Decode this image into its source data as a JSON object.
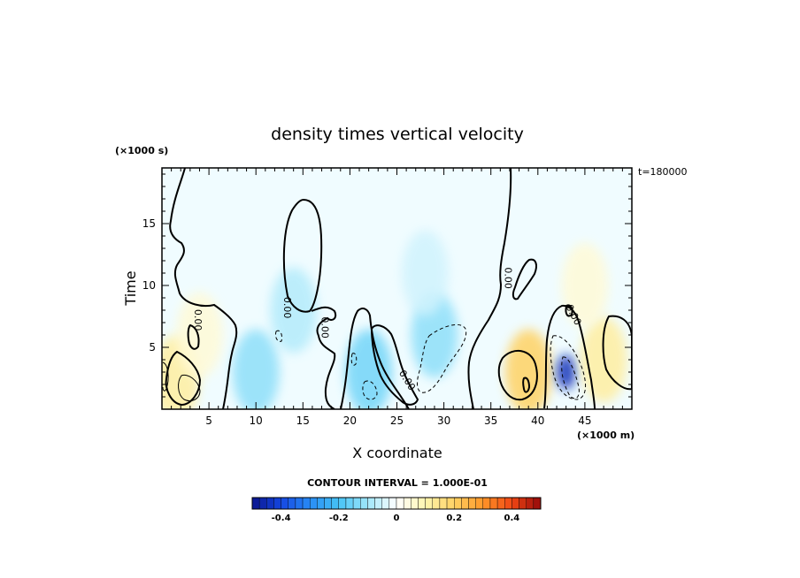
{
  "chart_data": {
    "type": "heatmap",
    "title": "density times vertical velocity",
    "xlabel": "X coordinate",
    "ylabel": "Time",
    "x_unit_label": "(×1000 m)",
    "y_unit_label": "(×1000 s)",
    "time_label": "t=180000",
    "xlim": [
      0,
      50
    ],
    "ylim": [
      0,
      19.5
    ],
    "x_ticks": [
      "5",
      "10",
      "15",
      "20",
      "25",
      "30",
      "35",
      "40",
      "45"
    ],
    "x_tick_values": [
      5,
      10,
      15,
      20,
      25,
      30,
      35,
      40,
      45
    ],
    "y_ticks": [
      "5",
      "10",
      "15"
    ],
    "y_tick_values": [
      5,
      10,
      15
    ],
    "contour_interval_label": "CONTOUR INTERVAL = 1.000E-01",
    "zero_contour_label": "0.00",
    "colorbar": {
      "range": [
        -0.5,
        0.5
      ],
      "tick_labels": [
        "-0.4",
        "-0.2",
        "0",
        "0.2",
        "0.4"
      ],
      "tick_values": [
        -0.4,
        -0.2,
        0,
        0.2,
        0.4
      ],
      "n_bins": 40
    },
    "features": [
      {
        "x": 1.5,
        "y": 2.5,
        "value": 0.12
      },
      {
        "x": 4.0,
        "y": 6.0,
        "value": 0.05
      },
      {
        "x": 10.0,
        "y": 3.0,
        "value": -0.12
      },
      {
        "x": 14.0,
        "y": 8.0,
        "value": -0.08
      },
      {
        "x": 22.0,
        "y": 3.0,
        "value": -0.15
      },
      {
        "x": 29.0,
        "y": 6.0,
        "value": -0.12
      },
      {
        "x": 28.0,
        "y": 11.0,
        "value": -0.05
      },
      {
        "x": 39.0,
        "y": 3.0,
        "value": 0.2
      },
      {
        "x": 43.0,
        "y": 3.0,
        "value": -0.45
      },
      {
        "x": 47.0,
        "y": 4.0,
        "value": 0.12
      },
      {
        "x": 45.0,
        "y": 10.0,
        "value": 0.05
      }
    ]
  }
}
